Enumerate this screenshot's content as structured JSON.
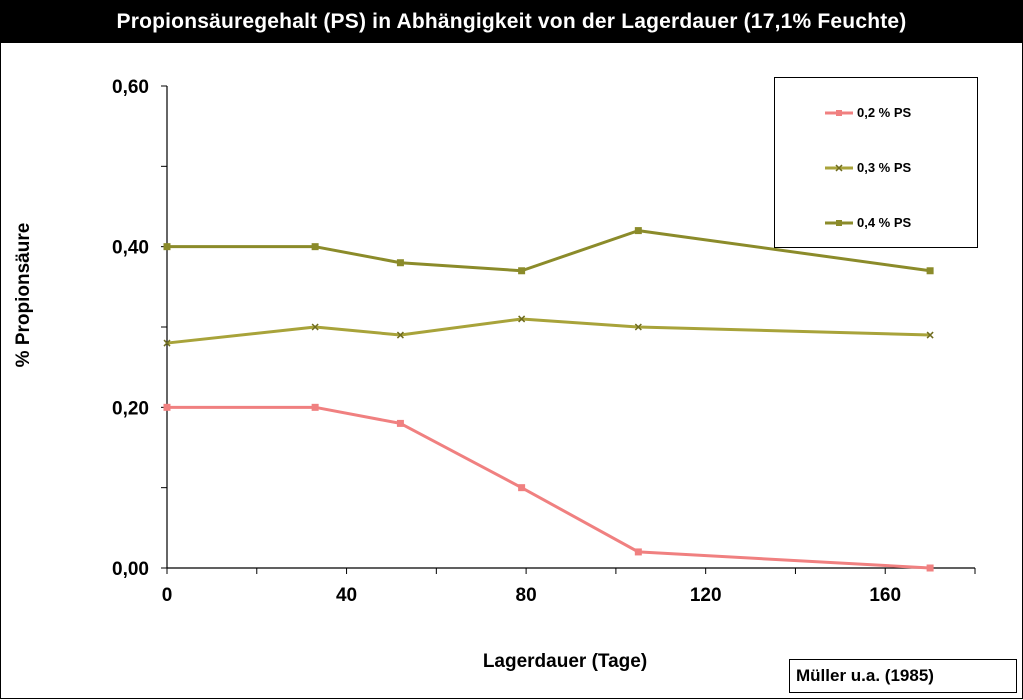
{
  "title": "Propionsäuregehalt (PS) in Abhängigkeit von der Lagerdauer (17,1% Feuchte)",
  "source": "Müller u.a. (1985)",
  "chart_data": {
    "type": "line",
    "title": "Propionsäuregehalt (PS) in Abhängigkeit von der Lagerdauer (17,1% Feuchte)",
    "xlabel": "Lagerdauer (Tage)",
    "ylabel": "% Propionsäure",
    "xlim": [
      0,
      180
    ],
    "ylim": [
      0,
      0.6
    ],
    "x_ticks": [
      "0",
      "40",
      "80",
      "120",
      "160"
    ],
    "y_ticks": [
      "0,00",
      "0,20",
      "0,40",
      "0,60"
    ],
    "grid": false,
    "legend_position": "top-right",
    "series": [
      {
        "name": "0,2 % PS",
        "color": "#f08080",
        "marker": "square",
        "x": [
          0,
          33,
          52,
          79,
          105,
          170
        ],
        "y": [
          0.2,
          0.2,
          0.18,
          0.1,
          0.02,
          0.0
        ]
      },
      {
        "name": "0,3 % PS",
        "color": "#a8a33a",
        "marker": "x",
        "x": [
          0,
          33,
          52,
          79,
          105,
          170
        ],
        "y": [
          0.28,
          0.3,
          0.29,
          0.31,
          0.3,
          0.29
        ]
      },
      {
        "name": "0,4 % PS",
        "color": "#8b8b2a",
        "marker": "square",
        "x": [
          0,
          33,
          52,
          79,
          105,
          170
        ],
        "y": [
          0.4,
          0.4,
          0.38,
          0.37,
          0.42,
          0.37
        ]
      }
    ]
  }
}
